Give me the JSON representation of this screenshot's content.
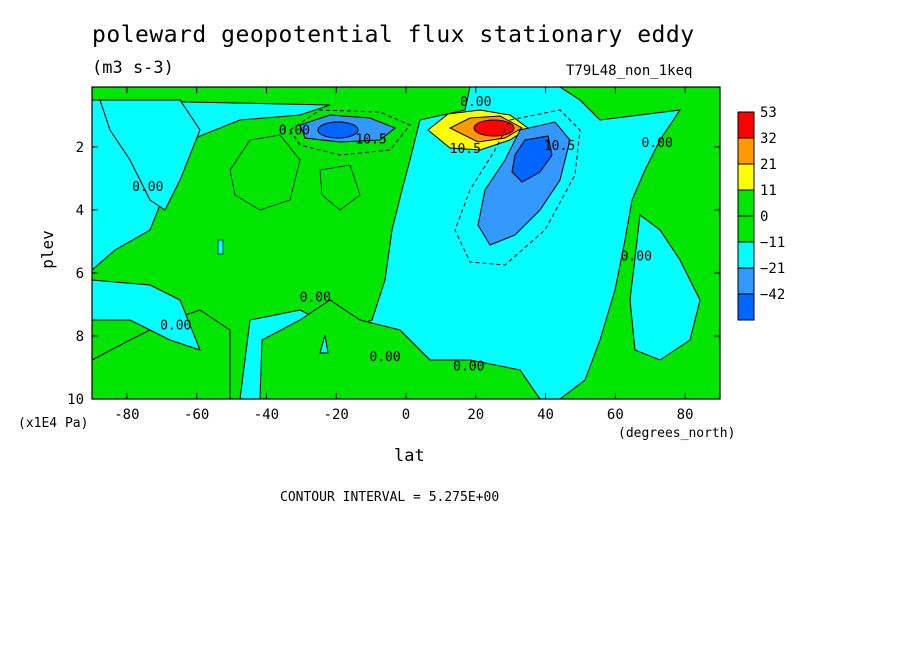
{
  "chart_data": {
    "type": "heatmap",
    "title": "poleward geopotential flux stationary eddy",
    "units": "(m3 s-3)",
    "dataset": "T79L48_non_1keq",
    "xlabel": "lat",
    "xunit": "(degrees_north)",
    "ylabel": "plev",
    "yunit": "(x1E4 Pa)",
    "contour_interval_text": "CONTOUR INTERVAL = 5.275E+00",
    "xlim": [
      -90,
      90
    ],
    "ylim": [
      10,
      0.1
    ],
    "xticks": [
      -80,
      -60,
      -40,
      -20,
      0,
      20,
      40,
      60,
      80
    ],
    "yticks": [
      2,
      4,
      6,
      8,
      10
    ],
    "legend": {
      "placement": "right",
      "levels": [
        "53",
        "32",
        "21",
        "11",
        "0",
        "−11",
        "−21",
        "−42"
      ],
      "colors": [
        "#ff0000",
        "#ff9900",
        "#ffff00",
        "#00e600",
        "#00e600",
        "#00ffff",
        "#3399ff",
        "#0066ff"
      ]
    },
    "contour_labels": [
      {
        "text": "0.00",
        "lat": 20,
        "plev": 0.7
      },
      {
        "text": "0.00",
        "lat": -32,
        "plev": 1.6
      },
      {
        "text": "10.5",
        "lat": -10,
        "plev": 1.9
      },
      {
        "text": "10.5",
        "lat": 17,
        "plev": 2.2
      },
      {
        "text": "10.5",
        "lat": 44,
        "plev": 2.1
      },
      {
        "text": "0.00",
        "lat": 72,
        "plev": 2.0
      },
      {
        "text": "0.00",
        "lat": -74,
        "plev": 3.4
      },
      {
        "text": "0.00",
        "lat": 66,
        "plev": 5.6
      },
      {
        "text": "0.00",
        "lat": -26,
        "plev": 6.9
      },
      {
        "text": "0.00",
        "lat": -66,
        "plev": 7.8
      },
      {
        "text": "0.00",
        "lat": -6,
        "plev": 8.8
      },
      {
        "text": "0.00",
        "lat": 18,
        "plev": 9.1
      }
    ],
    "features": [
      {
        "sign": "positive",
        "lat": 24,
        "plev": 1.5,
        "peak": 53
      },
      {
        "sign": "negative",
        "lat": 36,
        "plev": 2.6,
        "peak": -32
      },
      {
        "sign": "negative",
        "lat": -20,
        "plev": 1.4,
        "peak": -21
      }
    ]
  }
}
